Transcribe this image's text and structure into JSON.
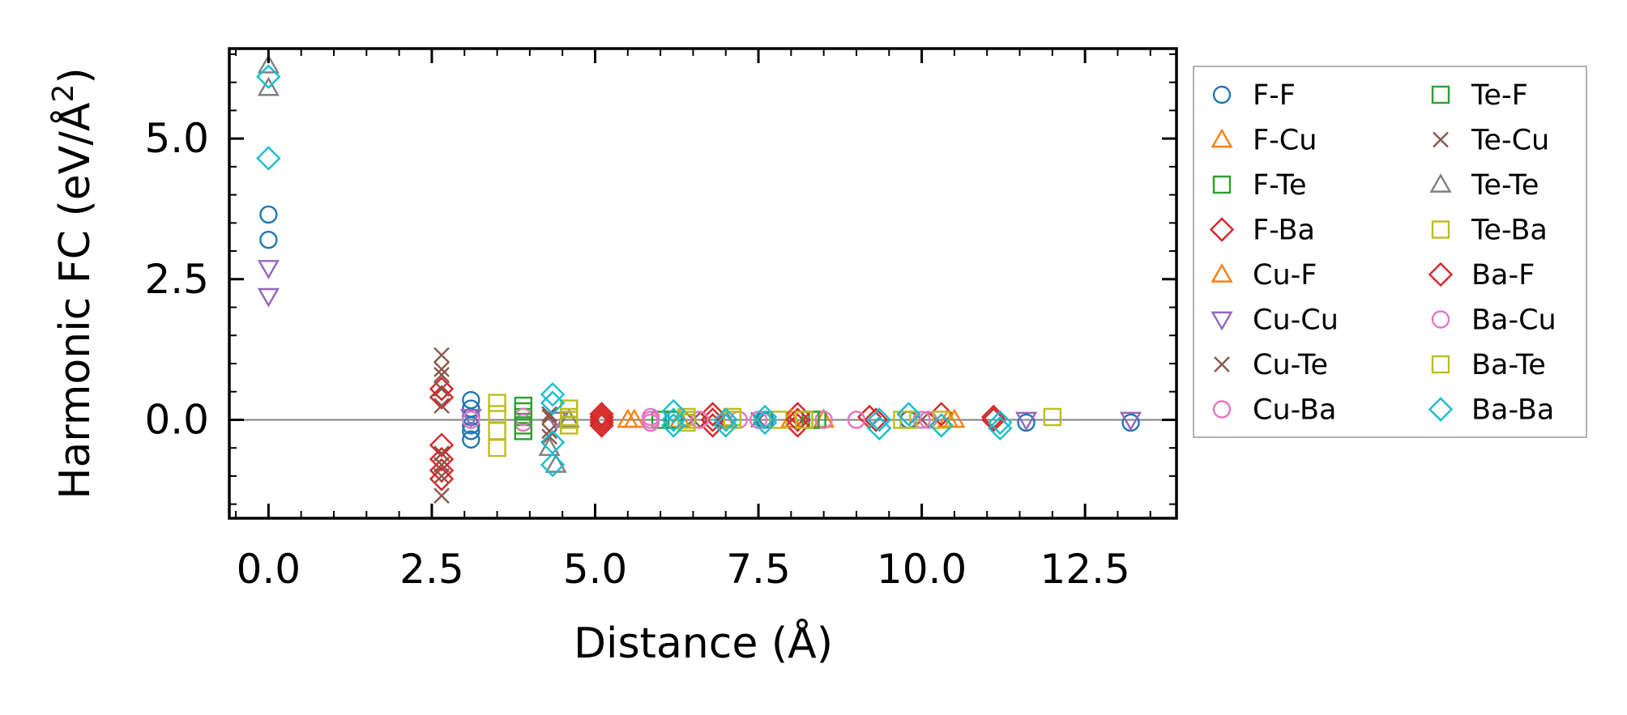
{
  "chart_data": {
    "type": "scatter",
    "title": "",
    "xlabel": "Distance (Å)",
    "ylabel_main": "Harmonic FC (eV/Å",
    "ylabel_sup": "2",
    "ylabel_close": ")",
    "xlim": [
      -0.6,
      13.9
    ],
    "ylim": [
      -1.75,
      6.6
    ],
    "xticks": [
      {
        "value": 0.0,
        "label": "0.0"
      },
      {
        "value": 2.5,
        "label": "2.5"
      },
      {
        "value": 5.0,
        "label": "5.0"
      },
      {
        "value": 7.5,
        "label": "7.5"
      },
      {
        "value": 10.0,
        "label": "10.0"
      },
      {
        "value": 12.5,
        "label": "12.5"
      }
    ],
    "yticks": [
      {
        "value": 0.0,
        "label": "0.0"
      },
      {
        "value": 2.5,
        "label": "2.5"
      },
      {
        "value": 5.0,
        "label": "5.0"
      }
    ],
    "zero_line": 0.0,
    "legend_position": "outside-right",
    "series": [
      {
        "name": "F-F",
        "marker": "circle",
        "color": "#1f77b4",
        "points": [
          [
            0,
            3.65
          ],
          [
            0,
            3.2
          ],
          [
            3.1,
            0.35
          ],
          [
            3.1,
            0.2
          ],
          [
            3.1,
            0.05
          ],
          [
            3.1,
            -0.1
          ],
          [
            3.1,
            -0.2
          ],
          [
            3.1,
            -0.35
          ],
          [
            6.2,
            0.0
          ],
          [
            7.6,
            0.0
          ],
          [
            9.8,
            0.0
          ],
          [
            11.6,
            -0.05
          ],
          [
            13.2,
            -0.05
          ]
        ]
      },
      {
        "name": "F-Cu",
        "marker": "triangle-up",
        "color": "#ff7f0e",
        "points": [
          [
            5.5,
            0.0
          ],
          [
            6.3,
            0.0
          ],
          [
            8.5,
            0.0
          ],
          [
            10.4,
            0.0
          ]
        ]
      },
      {
        "name": "F-Te",
        "marker": "square",
        "color": "#2ca02c",
        "points": [
          [
            3.9,
            0.25
          ],
          [
            3.9,
            0.05
          ],
          [
            3.9,
            -0.2
          ],
          [
            6.0,
            0.0
          ],
          [
            8.4,
            0.0
          ]
        ]
      },
      {
        "name": "F-Ba",
        "marker": "diamond",
        "color": "#d62728",
        "points": [
          [
            2.65,
            0.55
          ],
          [
            2.65,
            0.4
          ],
          [
            2.65,
            -0.45
          ],
          [
            2.65,
            -0.7
          ],
          [
            2.65,
            -0.9
          ],
          [
            2.65,
            -1.05
          ],
          [
            5.1,
            0.1
          ],
          [
            5.1,
            0.0
          ],
          [
            5.1,
            -0.1
          ],
          [
            6.8,
            0.1
          ],
          [
            6.8,
            -0.1
          ],
          [
            8.1,
            0.1
          ],
          [
            8.1,
            -0.1
          ],
          [
            9.2,
            0.05
          ],
          [
            10.3,
            0.1
          ],
          [
            11.1,
            0.05
          ]
        ]
      },
      {
        "name": "Cu-F",
        "marker": "triangle-up",
        "color": "#ff7f0e",
        "points": [
          [
            5.6,
            0.0
          ],
          [
            8.0,
            0.0
          ],
          [
            10.5,
            0.0
          ]
        ]
      },
      {
        "name": "Cu-Cu",
        "marker": "triangle-down",
        "color": "#9467bd",
        "points": [
          [
            0,
            2.7
          ],
          [
            0,
            2.2
          ],
          [
            3.1,
            0.05
          ],
          [
            4.4,
            0.0
          ],
          [
            11.6,
            0.0
          ],
          [
            13.2,
            0.0
          ]
        ]
      },
      {
        "name": "Cu-Te",
        "marker": "x",
        "color": "#8c564b",
        "points": [
          [
            2.65,
            1.15
          ],
          [
            2.65,
            0.8
          ],
          [
            2.65,
            0.55
          ],
          [
            2.65,
            0.25
          ],
          [
            2.65,
            -0.6
          ],
          [
            2.65,
            -1.0
          ],
          [
            2.65,
            -1.35
          ],
          [
            4.3,
            0.05
          ],
          [
            4.3,
            -0.3
          ],
          [
            6.5,
            0.0
          ],
          [
            7.5,
            0.0
          ],
          [
            10.0,
            0.0
          ]
        ]
      },
      {
        "name": "Cu-Ba",
        "marker": "circle",
        "color": "#e377c2",
        "points": [
          [
            3.9,
            0.05
          ],
          [
            3.9,
            -0.05
          ],
          [
            5.85,
            0.05
          ],
          [
            5.85,
            -0.05
          ],
          [
            7.2,
            0.0
          ],
          [
            8.5,
            0.0
          ],
          [
            9.0,
            0.0
          ],
          [
            10.1,
            0.0
          ]
        ]
      },
      {
        "name": "Te-F",
        "marker": "square",
        "color": "#2ca02c",
        "points": [
          [
            3.9,
            0.15
          ],
          [
            3.9,
            -0.1
          ],
          [
            6.2,
            0.0
          ],
          [
            8.3,
            0.0
          ]
        ]
      },
      {
        "name": "Te-Cu",
        "marker": "x",
        "color": "#8c564b",
        "points": [
          [
            2.65,
            0.9
          ],
          [
            2.65,
            -0.8
          ],
          [
            4.3,
            0.1
          ],
          [
            4.3,
            -0.2
          ]
        ]
      },
      {
        "name": "Te-Te",
        "marker": "triangle-up",
        "color": "#7f7f7f",
        "points": [
          [
            0,
            6.3
          ],
          [
            0,
            5.9
          ],
          [
            4.3,
            -0.5
          ],
          [
            4.4,
            -0.8
          ],
          [
            4.6,
            0.0
          ],
          [
            7.0,
            0.0
          ]
        ]
      },
      {
        "name": "Te-Ba",
        "marker": "square",
        "color": "#bcbd22",
        "points": [
          [
            3.5,
            0.3
          ],
          [
            3.5,
            -0.2
          ],
          [
            3.5,
            -0.5
          ],
          [
            4.6,
            0.2
          ],
          [
            4.6,
            0.0
          ],
          [
            4.6,
            -0.1
          ],
          [
            6.4,
            0.05
          ],
          [
            6.4,
            -0.05
          ],
          [
            7.1,
            0.05
          ],
          [
            7.8,
            0.0
          ],
          [
            8.2,
            0.0
          ],
          [
            9.7,
            0.0
          ],
          [
            10.3,
            0.0
          ],
          [
            12.0,
            0.05
          ]
        ]
      },
      {
        "name": "Ba-F",
        "marker": "diamond",
        "color": "#d62728",
        "points": [
          [
            5.1,
            0.05
          ],
          [
            5.1,
            -0.05
          ],
          [
            6.8,
            0.0
          ],
          [
            8.1,
            0.0
          ],
          [
            9.3,
            0.0
          ],
          [
            11.1,
            0.0
          ]
        ]
      },
      {
        "name": "Ba-Cu",
        "marker": "circle",
        "color": "#e377c2",
        "points": [
          [
            3.1,
            0.0
          ],
          [
            5.85,
            0.0
          ],
          [
            6.6,
            0.0
          ],
          [
            7.5,
            0.0
          ],
          [
            9.0,
            0.0
          ],
          [
            10.0,
            0.0
          ]
        ]
      },
      {
        "name": "Ba-Te",
        "marker": "square",
        "color": "#bcbd22",
        "points": [
          [
            3.5,
            0.1
          ],
          [
            4.6,
            0.05
          ],
          [
            6.4,
            0.0
          ],
          [
            7.1,
            0.0
          ],
          [
            8.2,
            0.0
          ],
          [
            9.8,
            0.0
          ]
        ]
      },
      {
        "name": "Ba-Ba",
        "marker": "diamond",
        "color": "#17becf",
        "points": [
          [
            0,
            6.1
          ],
          [
            0,
            4.65
          ],
          [
            4.35,
            0.45
          ],
          [
            4.35,
            0.3
          ],
          [
            4.35,
            -0.4
          ],
          [
            4.35,
            -0.8
          ],
          [
            6.2,
            0.15
          ],
          [
            6.2,
            0.0
          ],
          [
            6.2,
            -0.1
          ],
          [
            7.0,
            0.0
          ],
          [
            7.0,
            -0.1
          ],
          [
            7.6,
            0.05
          ],
          [
            7.6,
            -0.05
          ],
          [
            9.35,
            0.0
          ],
          [
            9.35,
            -0.15
          ],
          [
            9.8,
            0.1
          ],
          [
            10.3,
            -0.1
          ],
          [
            11.2,
            -0.05
          ],
          [
            11.2,
            -0.15
          ]
        ]
      }
    ]
  }
}
